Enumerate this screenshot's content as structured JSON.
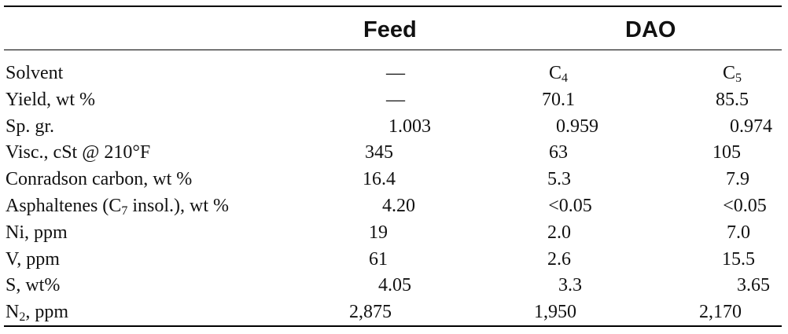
{
  "table": {
    "headers": {
      "feed": "Feed",
      "dao": "DAO"
    },
    "rows": [
      {
        "label": "Solvent",
        "label_sub": "",
        "label_suffix": "",
        "feed": "—",
        "c4": "C",
        "c4_sub": "4",
        "c5": "C",
        "c5_sub": "5"
      },
      {
        "label": "Yield, wt %",
        "label_sub": "",
        "label_suffix": "",
        "feed": "—",
        "c4": "70.1",
        "c4_sub": "",
        "c5": "85.5",
        "c5_sub": ""
      },
      {
        "label": "Sp. gr.",
        "label_sub": "",
        "label_suffix": "",
        "feed": "1.003",
        "c4": "0.959",
        "c4_sub": "",
        "c5": "0.974",
        "c5_sub": ""
      },
      {
        "label": "Visc., cSt @ 210°F",
        "label_sub": "",
        "label_suffix": "",
        "feed": "345",
        "c4": "63",
        "c4_sub": "",
        "c5": "105",
        "c5_sub": ""
      },
      {
        "label": "Conradson carbon, wt %",
        "label_sub": "",
        "label_suffix": "",
        "feed": "16.4",
        "c4": "5.3",
        "c4_sub": "",
        "c5": "7.9",
        "c5_sub": ""
      },
      {
        "label": "Asphaltenes (C",
        "label_sub": "7",
        "label_suffix": " insol.), wt %",
        "feed": "4.20",
        "c4": "<0.05",
        "c4_sub": "",
        "c5": "<0.05",
        "c5_sub": ""
      },
      {
        "label": "Ni, ppm",
        "label_sub": "",
        "label_suffix": "",
        "feed": "19",
        "c4": "2.0",
        "c4_sub": "",
        "c5": "7.0",
        "c5_sub": ""
      },
      {
        "label": "V, ppm",
        "label_sub": "",
        "label_suffix": "",
        "feed": "61",
        "c4": "2.6",
        "c4_sub": "",
        "c5": "15.5",
        "c5_sub": ""
      },
      {
        "label": "S, wt%",
        "label_sub": "",
        "label_suffix": "",
        "feed": "4.05",
        "c4": "3.3",
        "c4_sub": "",
        "c5": "3.65",
        "c5_sub": ""
      },
      {
        "label": "N",
        "label_sub": "2",
        "label_suffix": ", ppm",
        "feed": "2,875",
        "c4": "1,950",
        "c4_sub": "",
        "c5": "2,170",
        "c5_sub": ""
      }
    ]
  }
}
